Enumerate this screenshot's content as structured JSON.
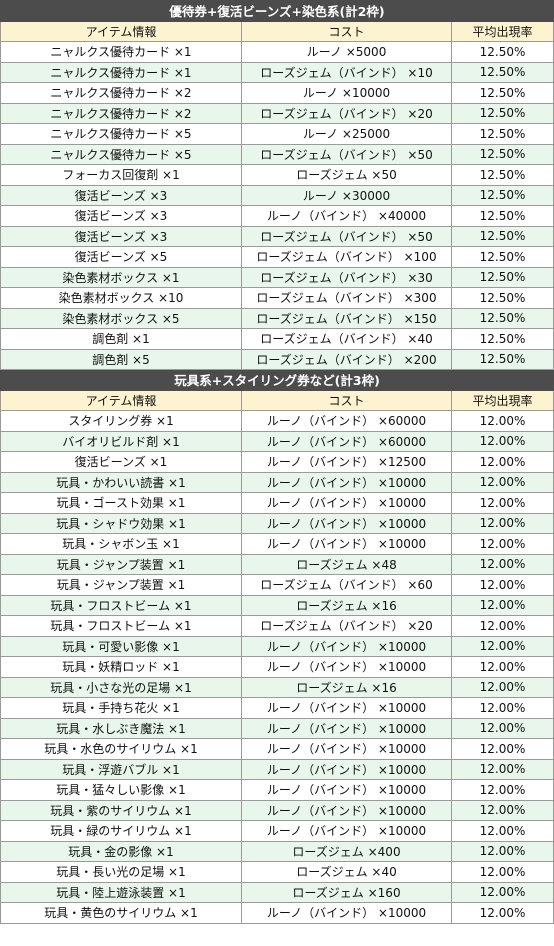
{
  "sections": [
    {
      "title": "優待券+復活ビーンズ+染色系(計2枠)",
      "headers": [
        "アイテム情報",
        "コスト",
        "平均出現率"
      ],
      "rows": [
        [
          "ニャルクス優待カード ×1",
          "ルーノ ×5000",
          "12.50%"
        ],
        [
          "ニャルクス優待カード ×1",
          "ローズジェム（バインド） ×10",
          "12.50%"
        ],
        [
          "ニャルクス優待カード ×2",
          "ルーノ ×10000",
          "12.50%"
        ],
        [
          "ニャルクス優待カード ×2",
          "ローズジェム（バインド） ×20",
          "12.50%"
        ],
        [
          "ニャルクス優待カード ×5",
          "ルーノ ×25000",
          "12.50%"
        ],
        [
          "ニャルクス優待カード ×5",
          "ローズジェム（バインド） ×50",
          "12.50%"
        ],
        [
          "フォーカス回復剤 ×1",
          "ローズジェム ×50",
          "12.50%"
        ],
        [
          "復活ビーンズ ×3",
          "ルーノ ×30000",
          "12.50%"
        ],
        [
          "復活ビーンズ ×3",
          "ルーノ（バインド） ×40000",
          "12.50%"
        ],
        [
          "復活ビーンズ ×3",
          "ローズジェム（バインド） ×50",
          "12.50%"
        ],
        [
          "復活ビーンズ ×5",
          "ローズジェム（バインド） ×100",
          "12.50%"
        ],
        [
          "染色素材ボックス ×1",
          "ローズジェム（バインド） ×30",
          "12.50%"
        ],
        [
          "染色素材ボックス ×10",
          "ローズジェム（バインド） ×300",
          "12.50%"
        ],
        [
          "染色素材ボックス ×5",
          "ローズジェム（バインド） ×150",
          "12.50%"
        ],
        [
          "調色剤 ×1",
          "ローズジェム（バインド） ×40",
          "12.50%"
        ],
        [
          "調色剤 ×5",
          "ローズジェム（バインド） ×200",
          "12.50%"
        ]
      ]
    },
    {
      "title": "玩具系+スタイリング券など(計3枠)",
      "headers": [
        "アイテム情報",
        "コスト",
        "平均出現率"
      ],
      "rows": [
        [
          "スタイリング券 ×1",
          "ルーノ（バインド） ×60000",
          "12.00%"
        ],
        [
          "バイオリビルド剤 ×1",
          "ルーノ（バインド） ×60000",
          "12.00%"
        ],
        [
          "復活ビーンズ ×1",
          "ルーノ（バインド） ×12500",
          "12.00%"
        ],
        [
          "玩具・かわいい読書 ×1",
          "ルーノ（バインド） ×10000",
          "12.00%"
        ],
        [
          "玩具・ゴースト効果 ×1",
          "ルーノ（バインド） ×10000",
          "12.00%"
        ],
        [
          "玩具・シャドウ効果 ×1",
          "ルーノ（バインド） ×10000",
          "12.00%"
        ],
        [
          "玩具・シャボン玉 ×1",
          "ルーノ（バインド） ×10000",
          "12.00%"
        ],
        [
          "玩具・ジャンプ装置 ×1",
          "ローズジェム ×48",
          "12.00%"
        ],
        [
          "玩具・ジャンプ装置 ×1",
          "ローズジェム（バインド） ×60",
          "12.00%"
        ],
        [
          "玩具・フロストビーム ×1",
          "ローズジェム ×16",
          "12.00%"
        ],
        [
          "玩具・フロストビーム ×1",
          "ローズジェム（バインド） ×20",
          "12.00%"
        ],
        [
          "玩具・可愛い影像 ×1",
          "ルーノ（バインド） ×10000",
          "12.00%"
        ],
        [
          "玩具・妖精ロッド ×1",
          "ルーノ（バインド） ×10000",
          "12.00%"
        ],
        [
          "玩具・小さな光の足場 ×1",
          "ローズジェム ×16",
          "12.00%"
        ],
        [
          "玩具・手持ち花火 ×1",
          "ルーノ（バインド） ×10000",
          "12.00%"
        ],
        [
          "玩具・水しぶき魔法 ×1",
          "ルーノ（バインド） ×10000",
          "12.00%"
        ],
        [
          "玩具・水色のサイリウム ×1",
          "ルーノ（バインド） ×10000",
          "12.00%"
        ],
        [
          "玩具・浮遊バブル ×1",
          "ルーノ（バインド） ×10000",
          "12.00%"
        ],
        [
          "玩具・猛々しい影像 ×1",
          "ルーノ（バインド） ×10000",
          "12.00%"
        ],
        [
          "玩具・紫のサイリウム ×1",
          "ルーノ（バインド） ×10000",
          "12.00%"
        ],
        [
          "玩具・緑のサイリウム ×1",
          "ルーノ（バインド） ×10000",
          "12.00%"
        ],
        [
          "玩具・金の影像 ×1",
          "ローズジェム ×400",
          "12.00%"
        ],
        [
          "玩具・長い光の足場 ×1",
          "ローズジェム ×40",
          "12.00%"
        ],
        [
          "玩具・陸上遊泳装置 ×1",
          "ローズジェム ×160",
          "12.00%"
        ],
        [
          "玩具・黄色のサイリウム ×1",
          "ルーノ（バインド） ×10000",
          "12.00%"
        ]
      ]
    }
  ]
}
